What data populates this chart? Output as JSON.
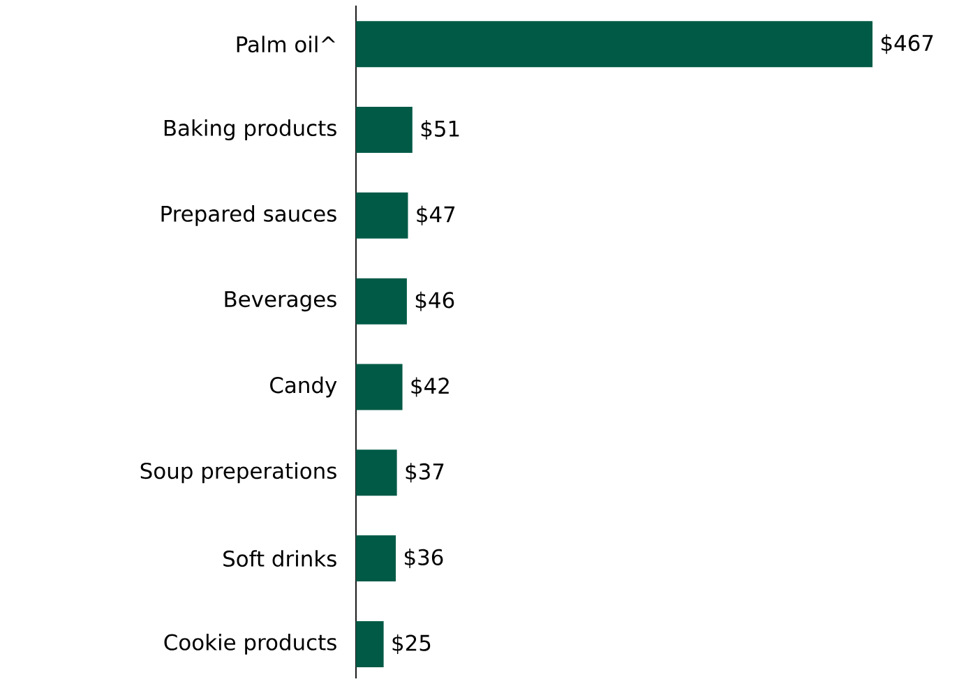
{
  "chart_data": {
    "type": "bar",
    "orientation": "horizontal",
    "relative": false,
    "categories": [
      "Palm oil^",
      "Baking products",
      "Prepared sauces",
      "Beverages",
      "Candy",
      "Soup preperations",
      "Soft drinks",
      "Cookie products"
    ],
    "values": [
      467,
      51,
      47,
      46,
      42,
      37,
      36,
      25
    ],
    "value_labels": [
      "$467",
      "$51",
      "$47",
      "$46",
      "$42",
      "$37",
      "$36",
      "$25"
    ],
    "color": "#005a46"
  }
}
